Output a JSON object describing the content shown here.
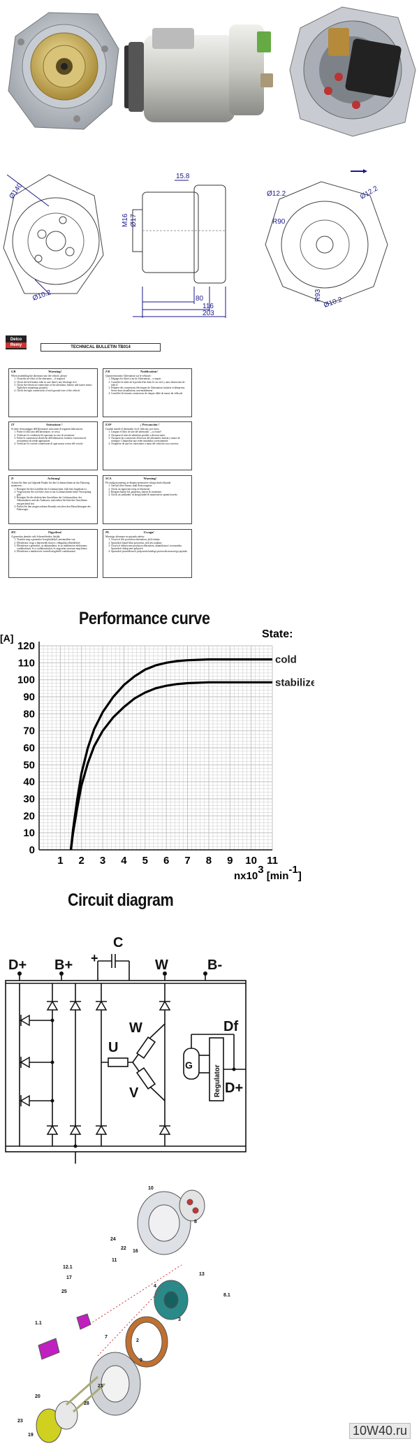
{
  "drawings": {
    "dim_15_8": "15.8",
    "dim_140": "Ø140",
    "dim_12_2_left": "Ø12.2",
    "dim_12_2_right": "Ø12.2",
    "dim_r90": "R90",
    "dim_m16": "M16",
    "dim_17": "Ø17",
    "dim_r93": "R93",
    "dim_10_2_left": "Ø10.2",
    "dim_10_2_right": "Ø10.2",
    "dim_80": "80",
    "dim_116": "116",
    "dim_203": "203"
  },
  "bulletin": {
    "logo_line1": "Delco",
    "logo_line2": "Remy",
    "title": "TECHNICAL BULLETIN TB014",
    "boxes": [
      {
        "code": "GB",
        "heading": "Warning!",
        "intro": "When assembling the alternator into the vehicle, please:",
        "items": [
          "Clean the air filter of the alternator – if required",
          "Check the belt brakes tube in case there's any blockage in it",
          "Check the electrical connections of the alternator, battery and starter motor. Tight their mountings properly",
          "Check the tight connections of each ground wire of the vehicle"
        ]
      },
      {
        "code": "FR",
        "heading": "Notification!",
        "intro": "Quand remontiez l'alternateur sur le véhicule:",
        "items": [
          "Dégager les filtres à air de l'alternateur – si requis",
          "Contrôler le tubes de la poulie d'air dans le cas où il y aura obstruction de tube d'",
          "Préparer des connexions électriques de l'alternateur, batterie et démarreur. Serrer leurs installations convenablement",
          "Contrôler les bonnes connexions de chaque câble de masse du véhicule"
        ]
      },
      {
        "code": "IT",
        "heading": "Attenzione !",
        "intro": "Si tiene di montaggio dell'alternatore assicurate di seguenti indicazioni:",
        "items": [
          "Pulire il filtro aria dell'alternatore, se cesso",
          "Verificare le condizioni di ispezione in caso di ostruzione",
          "Pulire le connessioni elettriche dell'alternatore, batteria e motorino di avviamento da sende appropriate",
          "Verificare le corrette connessioni di ogni massa a terra del veicolo"
        ]
      },
      {
        "code": "ESP",
        "heading": "¡ Precaución !",
        "intro": "Cuando instale el alternador en el vehículo, por favor:",
        "items": [
          "Limpiar el filtro de aire del alternador – ¡si existe!",
          "Chequear el tubo de admisión posible a obstrucciones",
          "Chequear las conexiones eléctricas del alternador, batería y motor de arranque. Comprobar que estén instaladas correctamente",
          "Asegúrese de que las conexiones a masa del vehículo son correctas"
        ]
      },
      {
        "code": "D",
        "heading": "Achtung!",
        "intro": "Achten Sie bitte auf folgende Punkte für den Lichtmaschinen an das Fahrzeug montieren:",
        "items": [
          "Reinigen Sie den Luftfilter der Lichtmaschine, falls hier eingebaut ist",
          "Vergewissern Sie sich bitte, dass es im Lichtmaschinen keine Verstopfung gibt",
          "Reinigen Sie die elektrischen Anschlüsse der Lichtmaschine, des Akkumulators und des Anlassers, und ziehen Sie bitte ihre Anschlüsse entsprechend fest",
          "Prüfen Sie den ausgeworfenen Kontakt zwischen den Masseleitungen des Fahrzeuges"
        ]
      },
      {
        "code": "SCA",
        "heading": "Warning!",
        "intro": "På vanlig montering av dinamo-generatore viktigt skrek följande:",
        "items": [
          "Om luft filter finnas, skall detta rengöras",
          "Check att ingen luft rörig är blockerad",
          "Rengöra batteri bil, generator, batteri & startmotor",
          "Check att jordkabel, så återgå kabel & monterad är optimi korrekt"
        ]
      },
      {
        "code": "HU",
        "heading": "Figyelem!",
        "intro": "A generátor járműre való felszerelésekor, kérjük:",
        "items": [
          "Tisztítsa meg a generátor levegőszűrőjét, amennyiben van",
          "Ellenőrizze, hogy a légvezeték tiszta-e, eldugulása elkerülésére",
          "Ellenőrizze a generátor, az akkumulátor, és az indítómotor elektromos csatlakozásait, és a csatlakozásokat, és szigorúan szorosan meg-húzza",
          "Ellenőrizze a minden test-vezeték megfelelő csatlakozását"
        ]
      },
      {
        "code": "PL",
        "heading": "Uwaga!",
        "intro": "Montując alternator na pojazdu należy:",
        "items": [
          "Oczyścić filtr powietrza alternatora, jeśli istnieje",
          "Sprawdzić kanał filtru powietrza, jeśli jest zatkany",
          "Oczyścić elektryczne przyłącza alternatora, akumulatora i rozrusznika. Sprawdzić dokręcenie połączeń",
          "Sprawdzić prawidłowość połączenia każdego przewodu masowego pojazdu"
        ]
      }
    ]
  },
  "performance": {
    "heading": "Performance curve",
    "state_label": "State:",
    "y_unit": "[A]",
    "x_unit_prefix": "nx10",
    "x_unit_exp": "3",
    "x_unit": "[min",
    "x_unit_exp2": "-1",
    "x_unit_close": "]"
  },
  "chart_data": {
    "type": "line",
    "xlim": [
      0,
      11
    ],
    "ylim": [
      0,
      120
    ],
    "x_ticks": [
      "1",
      "2",
      "3",
      "4",
      "5",
      "6",
      "7",
      "8",
      "9",
      "10",
      "11"
    ],
    "y_ticks": [
      "0",
      "10",
      "20",
      "30",
      "40",
      "50",
      "60",
      "70",
      "80",
      "90",
      "100",
      "110",
      "120"
    ],
    "grid": true,
    "series": [
      {
        "name": "cold",
        "x": [
          1.5,
          1.6,
          1.8,
          2.0,
          2.3,
          2.6,
          3.0,
          3.5,
          4.0,
          4.5,
          5.0,
          5.5,
          6.0,
          6.5,
          7.0,
          8.0,
          9.0,
          10.0,
          11.0
        ],
        "y": [
          0,
          12,
          30,
          45,
          60,
          71,
          81,
          90,
          97,
          102,
          106,
          108.5,
          110,
          111,
          111.5,
          112,
          112,
          112,
          112
        ]
      },
      {
        "name": "stabilized",
        "x": [
          1.5,
          1.6,
          1.8,
          2.0,
          2.3,
          2.6,
          3.0,
          3.5,
          4.0,
          4.5,
          5.0,
          5.5,
          6.0,
          6.5,
          7.0,
          8.0,
          9.0,
          10.0,
          11.0
        ],
        "y": [
          0,
          10,
          25,
          38,
          51,
          61,
          70,
          78,
          84,
          89,
          92.5,
          95,
          96.5,
          97.5,
          98,
          98.5,
          98.5,
          98.5,
          98.5
        ]
      }
    ]
  },
  "circuit": {
    "heading": "Circuit diagram",
    "term_dplus_left": "D+",
    "term_bplus": "B+",
    "term_c": "C",
    "term_w": "W",
    "term_bminus": "B-",
    "label_u": "U",
    "label_w": "W",
    "label_v": "V",
    "label_g": "G",
    "label_df": "Df",
    "label_regulator": "Regulator",
    "label_dplus_right": "D+",
    "plus_sign": "+"
  },
  "exploded": {
    "part_numbers": [
      "10",
      "8",
      "24",
      "22",
      "11",
      "12.1",
      "17",
      "25",
      "1.1",
      "7",
      "2",
      "13",
      "8.1",
      "4",
      "3",
      "21",
      "20",
      "28",
      "23",
      "19",
      "16",
      "9"
    ]
  },
  "watermark": {
    "text": "10W40.ru"
  },
  "colors": {
    "dimension_blue": "#1a1a8a",
    "grid_gray": "#aaaaaa",
    "pulley_gold": "#c9b060",
    "regulator_purple": "#c020c0",
    "rotor_teal": "#2a8a8a",
    "stator_orange": "#c07030",
    "ball_yellow": "#d0d020"
  }
}
